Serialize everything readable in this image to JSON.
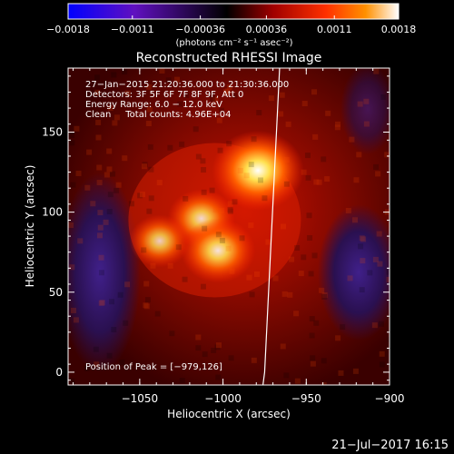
{
  "colorbar": {
    "tick_labels": [
      "−0.0018",
      "−0.0011",
      "−0.00036",
      "0.00036",
      "0.0011",
      "0.0018"
    ],
    "tick_values": [
      -0.0018,
      -0.0011,
      -0.00036,
      0.00036,
      0.0011,
      0.0018
    ],
    "range": [
      -0.0018,
      0.0018
    ],
    "units_label": "(photons cm⁻² s⁻¹ asec⁻²)",
    "colors": [
      "#0000ff",
      "#6010c0",
      "#000000",
      "#a00000",
      "#ff3000",
      "#ff9000",
      "#ffffff"
    ]
  },
  "chart_data": {
    "type": "heatmap",
    "title": "Reconstructed RHESSI Image",
    "xlabel": "Heliocentric X (arcsec)",
    "ylabel": "Heliocentric Y (arcsec)",
    "xlim": [
      -1093,
      -900
    ],
    "ylim": [
      -8,
      190
    ],
    "x_ticks": [
      -1050,
      -1000,
      -950,
      -900
    ],
    "x_tick_labels": [
      "−1050",
      "−1000",
      "−950",
      "−900"
    ],
    "y_ticks": [
      0,
      50,
      100,
      150
    ],
    "y_tick_labels": [
      "0",
      "50",
      "100",
      "150"
    ],
    "info_lines": [
      "27−Jan−2015 21:20:36.000 to 21:30:36.000",
      "Detectors: 3F 5F 6F 7F 8F 9F, Att 0",
      "Energy Range: 6.0 − 12.0 keV",
      "Clean     Total counts: 4.96E+04"
    ],
    "peak_label": "Position of Peak = [−979,126]",
    "peak": [
      -979,
      126
    ],
    "sources": [
      {
        "x": -979,
        "y": 126,
        "intensity": 0.0018
      },
      {
        "x": -1013,
        "y": 96,
        "intensity": 0.0011
      },
      {
        "x": -1003,
        "y": 76,
        "intensity": 0.0013
      },
      {
        "x": -1038,
        "y": 82,
        "intensity": 0.0009
      }
    ],
    "limb_line": [
      [
        -966,
        190
      ],
      [
        -975,
        0
      ],
      [
        -976,
        -8
      ]
    ]
  },
  "footer": {
    "date_stamp": "21−Jul−2017 16:15"
  }
}
